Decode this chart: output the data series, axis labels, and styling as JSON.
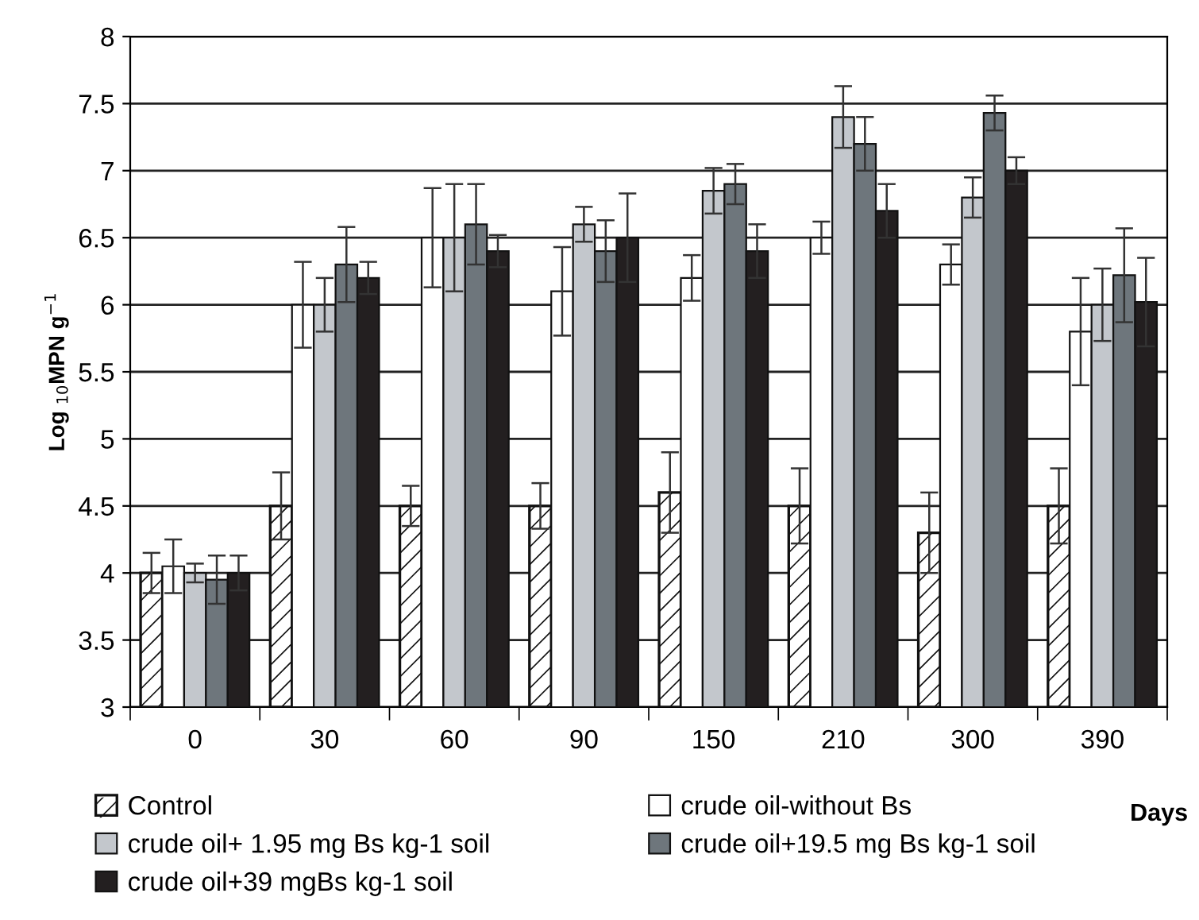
{
  "chart_data": {
    "type": "bar",
    "xlabel": "Days",
    "ylabel": "Log $_{10}$MPN g$^{−1}$",
    "categories": [
      "0",
      "30",
      "60",
      "90",
      "150",
      "210",
      "300",
      "390"
    ],
    "series": [
      {
        "name": "Control",
        "color": "#ffffff",
        "values": [
          4.0,
          4.5,
          4.5,
          4.5,
          4.6,
          4.5,
          4.3,
          4.5
        ],
        "errors": [
          0.15,
          0.25,
          0.15,
          0.17,
          0.3,
          0.28,
          0.3,
          0.28
        ]
      },
      {
        "name": "crude oil-without Bs",
        "color": "#ffffff",
        "values": [
          4.05,
          6.0,
          6.5,
          6.1,
          6.2,
          6.5,
          6.3,
          5.8
        ],
        "errors": [
          0.2,
          0.32,
          0.37,
          0.33,
          0.17,
          0.12,
          0.15,
          0.4
        ]
      },
      {
        "name": "crude oil+ 1.95 mg Bs kg-1 soil",
        "color": "#c3c7cc",
        "values": [
          4.0,
          6.0,
          6.5,
          6.6,
          6.85,
          7.4,
          6.8,
          6.0
        ],
        "errors": [
          0.07,
          0.2,
          0.4,
          0.13,
          0.17,
          0.23,
          0.15,
          0.27
        ]
      },
      {
        "name": "crude oil+19.5 mg Bs kg-1 soil",
        "color": "#6e767c",
        "values": [
          3.95,
          6.3,
          6.6,
          6.4,
          6.9,
          7.2,
          7.43,
          6.22
        ],
        "errors": [
          0.18,
          0.28,
          0.3,
          0.23,
          0.15,
          0.2,
          0.13,
          0.35
        ]
      },
      {
        "name": "crude oil+39 mgBs kg-1 soil",
        "color": "#231f20",
        "values": [
          4.0,
          6.2,
          6.4,
          6.5,
          6.4,
          6.7,
          7.0,
          6.02
        ],
        "errors": [
          0.13,
          0.12,
          0.12,
          0.33,
          0.2,
          0.2,
          0.1,
          0.33
        ]
      }
    ],
    "ylim": [
      3,
      8
    ],
    "yticks": [
      3,
      3.5,
      4,
      4.5,
      5,
      5.5,
      6,
      6.5,
      7,
      7.5,
      8
    ],
    "grid": "y",
    "legend": "bottom"
  }
}
